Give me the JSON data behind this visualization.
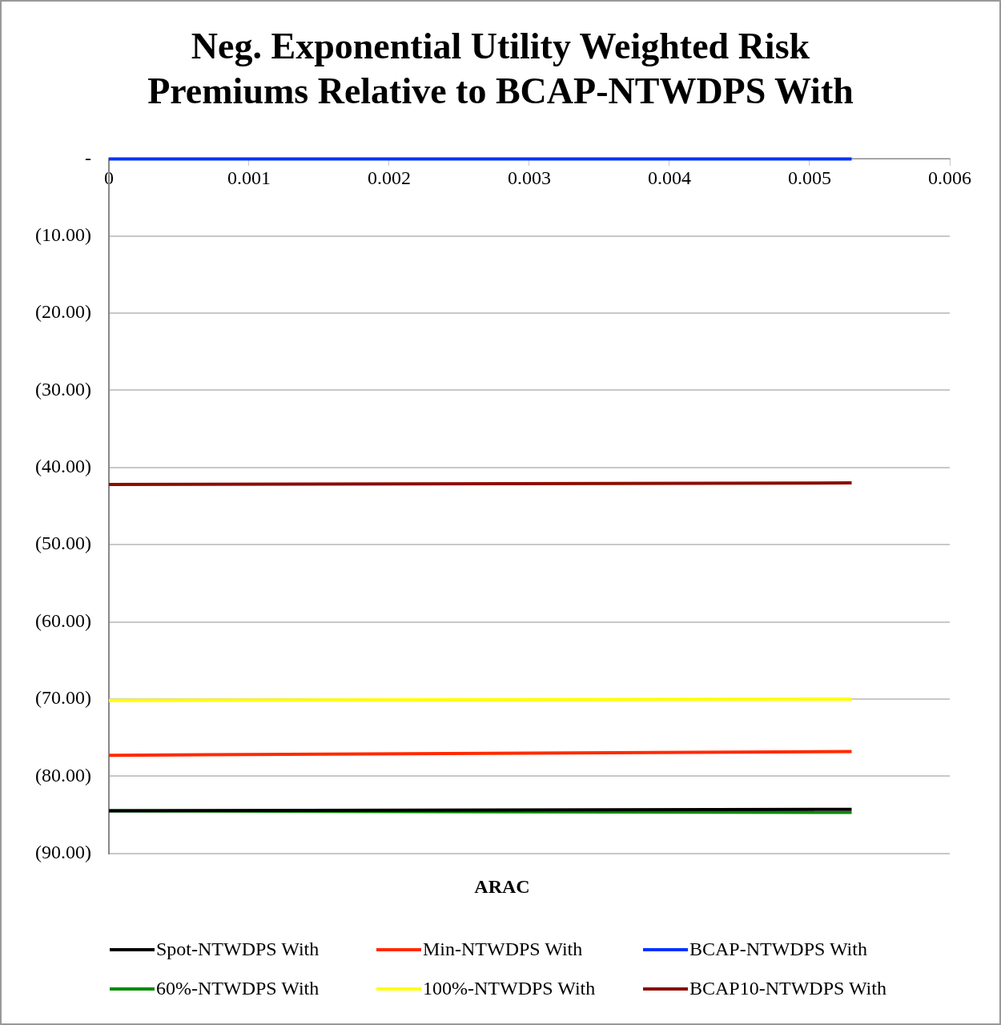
{
  "chart_data": {
    "type": "line",
    "title": "Neg. Exponential Utility Weighted Risk Premiums Relative to BCAP-NTWDPS With",
    "xlabel": "ARAC",
    "x": [
      0,
      0.0053
    ],
    "series": [
      {
        "name": "Spot-NTWDPS With",
        "color": "#000000",
        "values": [
          -84.5,
          -84.3
        ]
      },
      {
        "name": "Min-NTWDPS With",
        "color": "#ff2a00",
        "values": [
          -77.3,
          -76.8
        ]
      },
      {
        "name": "BCAP-NTWDPS With",
        "color": "#0033ff",
        "values": [
          0,
          0
        ]
      },
      {
        "name": "60%-NTWDPS With",
        "color": "#008c00",
        "values": [
          -84.5,
          -84.7
        ]
      },
      {
        "name": "100%-NTWDPS With",
        "color": "#ffff00",
        "values": [
          -70.2,
          -70
        ]
      },
      {
        "name": "BCAP10-NTWDPS With",
        "color": "#8b0d00",
        "values": [
          -42.2,
          -42
        ]
      }
    ],
    "xlim": [
      0,
      0.006
    ],
    "xticks": [
      0,
      0.001,
      0.002,
      0.003,
      0.004,
      0.005,
      0.006
    ],
    "ylim": [
      -90,
      0
    ],
    "yticks": [
      {
        "value": 0,
        "label": "-"
      },
      {
        "value": -10,
        "label": "(10.00)"
      },
      {
        "value": -20,
        "label": "(20.00)"
      },
      {
        "value": -30,
        "label": "(30.00)"
      },
      {
        "value": -40,
        "label": "(40.00)"
      },
      {
        "value": -50,
        "label": "(50.00)"
      },
      {
        "value": -60,
        "label": "(60.00)"
      },
      {
        "value": -70,
        "label": "(70.00)"
      },
      {
        "value": -80,
        "label": "(80.00)"
      },
      {
        "value": -90,
        "label": "(90.00)"
      }
    ],
    "grid": "y",
    "legend": "bottom",
    "marker": "none",
    "line_style": "solid"
  }
}
